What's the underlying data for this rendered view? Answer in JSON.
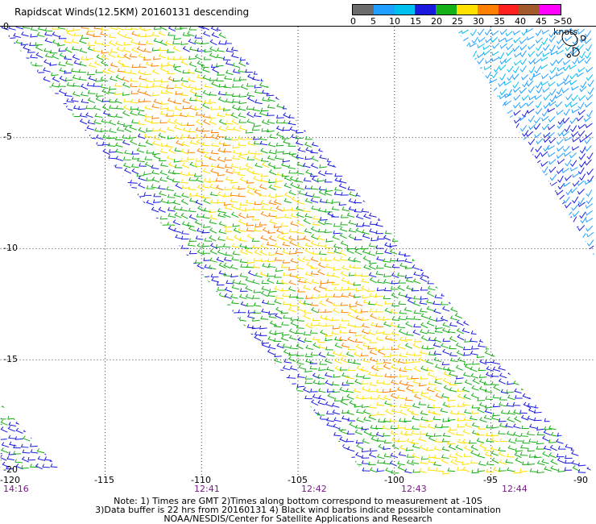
{
  "title": "Rapidscat Winds(12.5KM) 20160131 descending",
  "scale": {
    "labels": [
      "0",
      "5",
      "10",
      "15",
      "20",
      "25",
      "30",
      "35",
      "40",
      "45",
      ">50 knots"
    ],
    "colors": [
      "#6b6b6b",
      "#1f9fff",
      "#00c0f0",
      "#1a1adf",
      "#15b015",
      "#ffe100",
      "#ff8000",
      "#ff2020",
      "#a2592b",
      "#ff00ff",
      "#8a2be2"
    ]
  },
  "axes": {
    "lon_labels": [
      "-120",
      "-115",
      "-110",
      "-105",
      "-100",
      "-95",
      "-90"
    ],
    "lat_labels": [
      "0",
      "-5",
      "-10",
      "-15",
      "-20"
    ]
  },
  "times": [
    "14:16",
    "12:41",
    "12:42",
    "12:43",
    "12:44"
  ],
  "notes": [
    "Note: 1) Times are GMT 2)Times along bottom correspond to measurement at -10S",
    "3)Data buffer is 22 hrs from 20160131 4) Black wind barbs indicate possible contamination",
    "NOAA/NESDIS/Center for Satellite Applications and Research"
  ]
}
